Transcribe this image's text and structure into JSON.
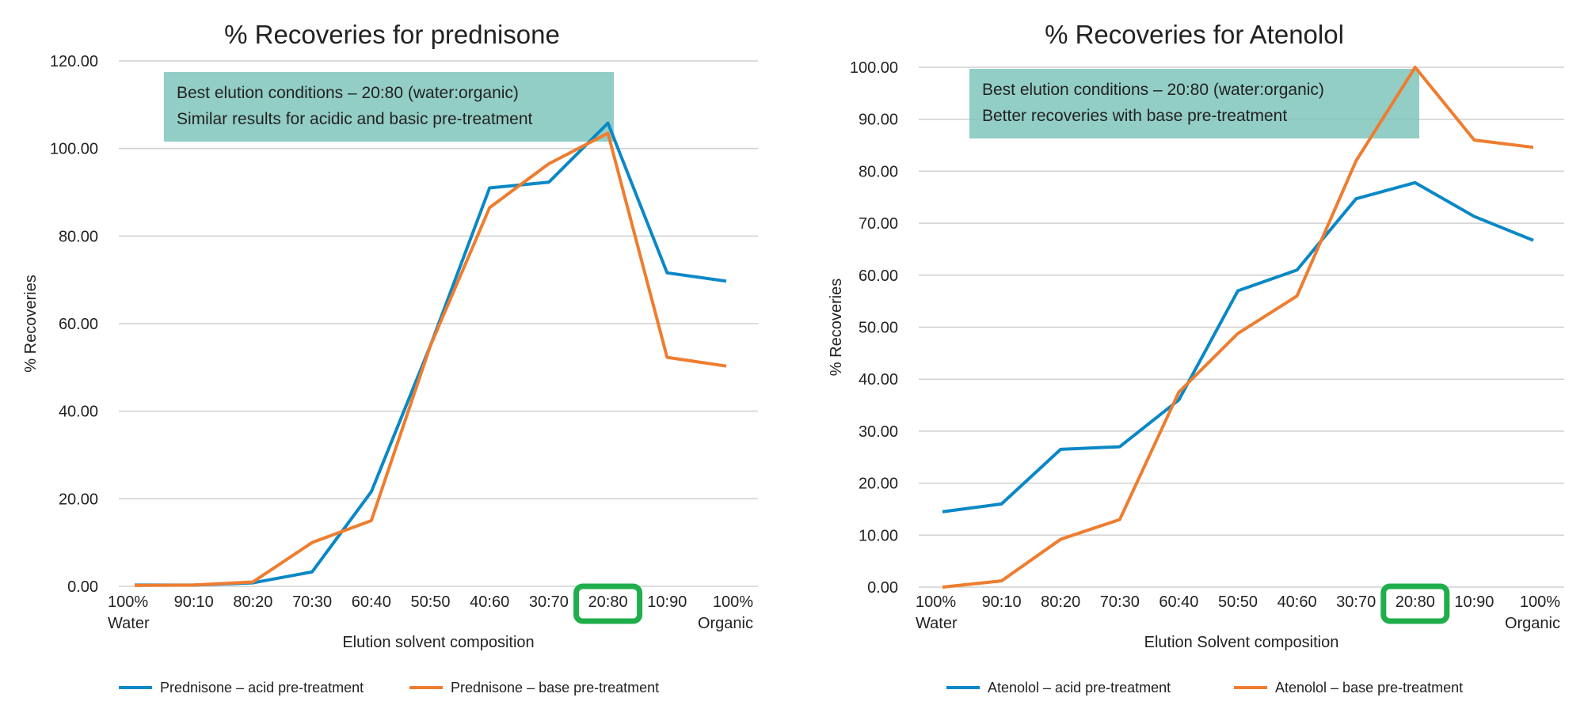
{
  "colors": {
    "acid": "#0a88c6",
    "base": "#ee7d2f",
    "note_box": "#7fc6bb",
    "highlight": "#1fae4b",
    "grid": "#d0d0d0"
  },
  "chart_data": [
    {
      "type": "line",
      "title": "% Recoveries for prednisone",
      "xlabel": "Elution solvent composition",
      "ylabel": "% Recoveries",
      "categories": [
        [
          "100%",
          "Water"
        ],
        [
          "90:10"
        ],
        [
          "80:20"
        ],
        [
          "70:30"
        ],
        [
          "60:40"
        ],
        [
          "50:50"
        ],
        [
          "40:60"
        ],
        [
          "30:70"
        ],
        [
          "20:80"
        ],
        [
          "10:90"
        ],
        [
          "100%",
          "Organic"
        ]
      ],
      "highlight_category": "20:80",
      "ylim": [
        0,
        120
      ],
      "yticks": [
        "0.00",
        "20.00",
        "40.00",
        "60.00",
        "80.00",
        "100.00",
        "120.00"
      ],
      "ytick_values": [
        0,
        20,
        40,
        60,
        80,
        100,
        120
      ],
      "grid": true,
      "legend_position": "bottom",
      "annotation": [
        "Best elution conditions – 20:80 (water:organic)",
        "Similar results for acidic and basic pre-treatment"
      ],
      "series": [
        {
          "name": "Prednisone – acid pre-treatment",
          "key": "acid",
          "values": [
            0.3,
            0.3,
            0.8,
            3.3,
            21.6,
            55,
            91,
            92.3,
            105.8,
            71.6,
            69.7
          ]
        },
        {
          "name": "Prednisone – base pre-treatment",
          "key": "base",
          "values": [
            0.2,
            0.3,
            1.0,
            10,
            15,
            55,
            86.5,
            96.5,
            103.5,
            52.3,
            50.3
          ]
        }
      ]
    },
    {
      "type": "line",
      "title": "% Recoveries for Atenolol",
      "xlabel": "Elution Solvent composition",
      "ylabel": "% Recoveries",
      "categories": [
        [
          "100%",
          "Water"
        ],
        [
          "90:10"
        ],
        [
          "80:20"
        ],
        [
          "70:30"
        ],
        [
          "60:40"
        ],
        [
          "50:50"
        ],
        [
          "40:60"
        ],
        [
          "30:70"
        ],
        [
          "20:80"
        ],
        [
          "10:90"
        ],
        [
          "100%",
          "Organic"
        ]
      ],
      "highlight_category": "20:80",
      "ylim": [
        0,
        100
      ],
      "yticks": [
        "0.00",
        "10.00",
        "20.00",
        "30.00",
        "40.00",
        "50.00",
        "60.00",
        "70.00",
        "80.00",
        "90.00",
        "100.00"
      ],
      "ytick_values": [
        0,
        10,
        20,
        30,
        40,
        50,
        60,
        70,
        80,
        90,
        100
      ],
      "grid": true,
      "legend_position": "bottom",
      "annotation": [
        "Best elution conditions – 20:80 (water:organic)",
        "Better recoveries with base pre-treatment"
      ],
      "series": [
        {
          "name": "Atenolol – acid pre-treatment",
          "key": "acid",
          "values": [
            14.5,
            16,
            26.5,
            27,
            36,
            57,
            61,
            74.7,
            77.8,
            71.3,
            66.7
          ]
        },
        {
          "name": "Atenolol – base pre-treatment",
          "key": "base",
          "values": [
            0,
            1.2,
            9.2,
            13,
            37.5,
            48.8,
            56,
            82,
            100,
            86,
            84.6
          ]
        }
      ]
    }
  ]
}
